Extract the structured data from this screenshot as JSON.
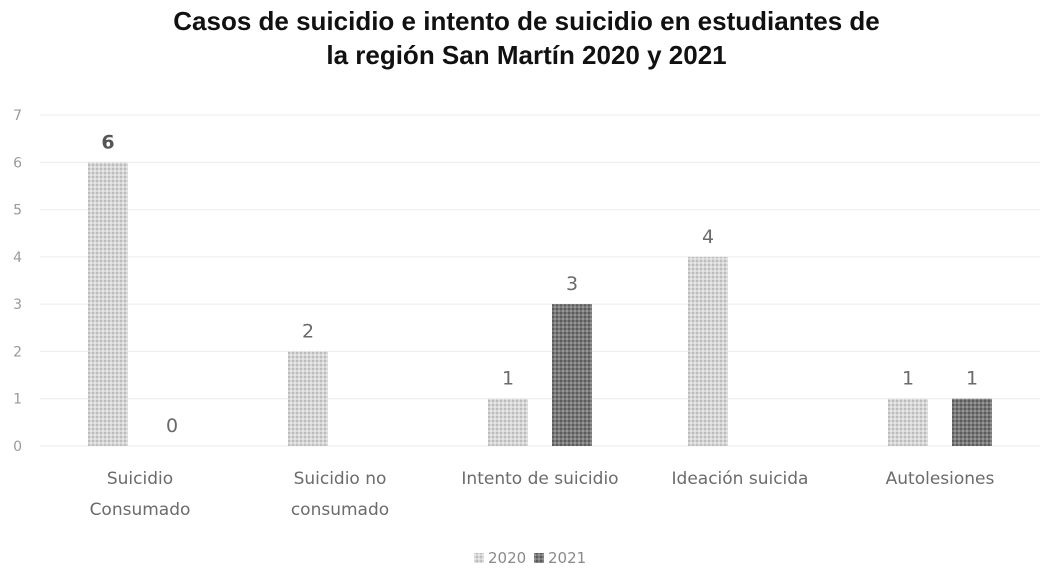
{
  "chart_data": {
    "type": "bar",
    "title_lines": [
      "Casos de suicidio e intento de suicidio en estudiantes de",
      "la región San Martín 2020 y 2021"
    ],
    "categories": [
      [
        "Suicidio",
        "Consumado"
      ],
      [
        "Suicidio no",
        "consumado"
      ],
      [
        "Intento de suicidio"
      ],
      [
        "Ideación suicida"
      ],
      [
        "Autolesiones"
      ]
    ],
    "series": [
      {
        "name": "2020",
        "values": [
          6,
          2,
          1,
          4,
          1
        ],
        "labels": [
          "6",
          "2",
          "1",
          "4",
          "1"
        ],
        "color": "#cfcfcf"
      },
      {
        "name": "2021",
        "values": [
          0,
          null,
          3,
          null,
          1
        ],
        "labels": [
          "0",
          null,
          "3",
          null,
          "1"
        ],
        "color": "#6e6e6e"
      }
    ],
    "ylim": [
      0,
      7
    ],
    "yticks": [
      "0",
      "1",
      "2",
      "3",
      "4",
      "5",
      "6",
      "7"
    ],
    "grid": true,
    "legend_position": "bottom"
  }
}
